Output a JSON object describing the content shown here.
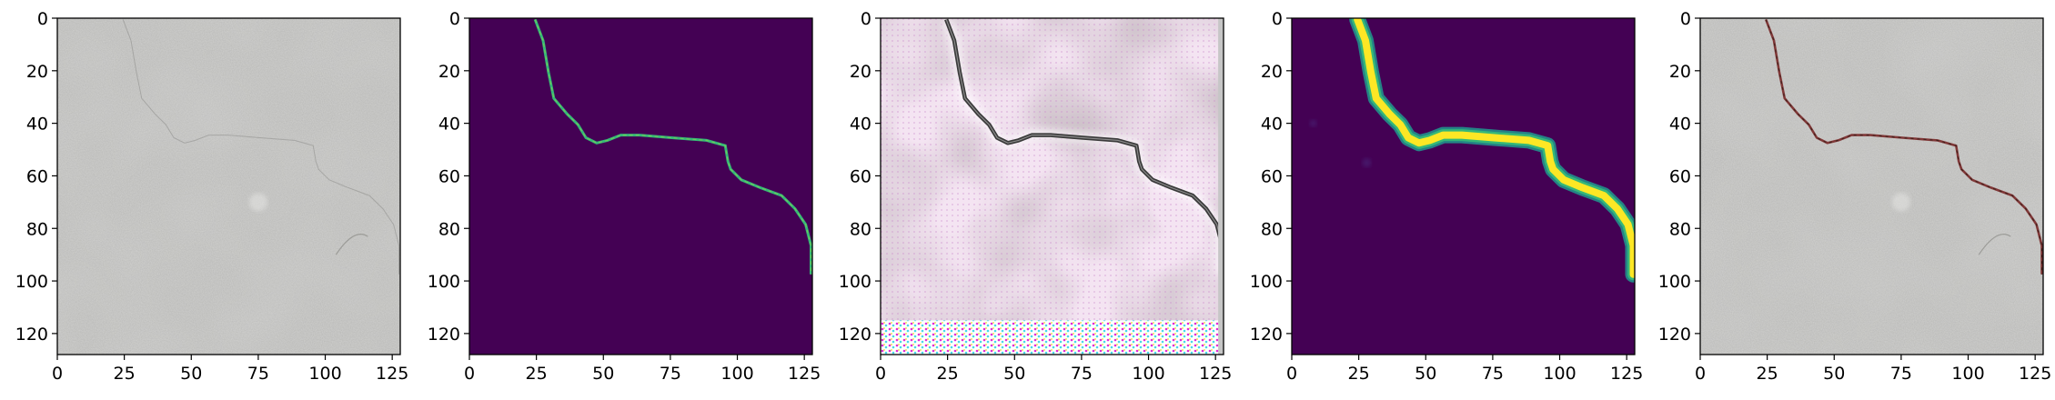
{
  "figure": {
    "panels": [
      {
        "id": "input",
        "content": "grey concrete texture photo with faint hairline crack",
        "x_ticks": [
          "0",
          "25",
          "50",
          "75",
          "100",
          "125"
        ],
        "y_ticks": [
          "0",
          "20",
          "40",
          "60",
          "80",
          "100",
          "120"
        ]
      },
      {
        "id": "ground-truth-mask",
        "content": "binary crack mask (viridis colormap)",
        "x_ticks": [
          "0",
          "25",
          "50",
          "75",
          "100",
          "125"
        ],
        "y_ticks": [
          "0",
          "20",
          "40",
          "60",
          "80",
          "100",
          "120"
        ]
      },
      {
        "id": "intermediate-output",
        "content": "pink/white artifact-laden reconstruction with dark crack",
        "x_ticks": [
          "0",
          "25",
          "50",
          "75",
          "100",
          "125"
        ],
        "y_ticks": [
          "0",
          "20",
          "40",
          "60",
          "80",
          "100",
          "120"
        ]
      },
      {
        "id": "predicted-mask",
        "content": "predicted crack probability map (viridis colormap)",
        "x_ticks": [
          "0",
          "25",
          "50",
          "75",
          "100",
          "125"
        ],
        "y_ticks": [
          "0",
          "20",
          "40",
          "60",
          "80",
          "100",
          "120"
        ]
      },
      {
        "id": "overlay",
        "content": "concrete photo with crack highlighted in dark red",
        "x_ticks": [
          "0",
          "25",
          "50",
          "75",
          "100",
          "125"
        ],
        "y_ticks": [
          "0",
          "20",
          "40",
          "60",
          "80",
          "100",
          "120"
        ]
      }
    ],
    "crack_path": [
      [
        24,
        0
      ],
      [
        27,
        8
      ],
      [
        29,
        20
      ],
      [
        31,
        30
      ],
      [
        36,
        36
      ],
      [
        40,
        40
      ],
      [
        43,
        45
      ],
      [
        47,
        47
      ],
      [
        51,
        46
      ],
      [
        56,
        44
      ],
      [
        63,
        44
      ],
      [
        75,
        45
      ],
      [
        88,
        46
      ],
      [
        95,
        48
      ],
      [
        96,
        54
      ],
      [
        97,
        57
      ],
      [
        101,
        61
      ],
      [
        108,
        64
      ],
      [
        116,
        67
      ],
      [
        121,
        72
      ],
      [
        125,
        78
      ],
      [
        127,
        86
      ],
      [
        127,
        97
      ]
    ],
    "colors": {
      "viridis_background": "#440154",
      "viridis_crack_bright": "#fde725",
      "viridis_crack_mid": "#35b779",
      "viridis_crack_edge": "#21918c",
      "concrete": "#b8b8b6",
      "overlay_crack": "#7a2a2a"
    }
  }
}
